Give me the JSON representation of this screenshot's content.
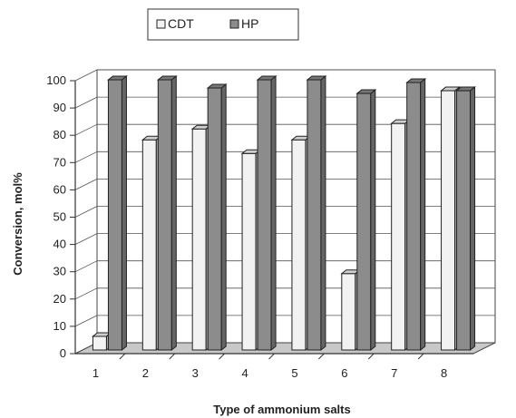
{
  "chart_data": {
    "type": "bar",
    "title": "",
    "xlabel": "Type of ammonium salts",
    "ylabel": "Conversion, mol%",
    "categories": [
      "1",
      "2",
      "3",
      "4",
      "5",
      "6",
      "7",
      "8"
    ],
    "ylim": [
      0,
      100
    ],
    "yticks": [
      "0",
      "10",
      "20",
      "30",
      "40",
      "50",
      "60",
      "70",
      "80",
      "90",
      "100"
    ],
    "grid": true,
    "legend_position": "top",
    "style": "3d-clustered",
    "series": [
      {
        "name": "CDT",
        "color": "#f2f2f2",
        "values": [
          5,
          77,
          81,
          72,
          77,
          28,
          83,
          95
        ]
      },
      {
        "name": "HP",
        "color": "#8c8c8c",
        "values": [
          99,
          99,
          96,
          99,
          99,
          94,
          98,
          95
        ]
      }
    ]
  }
}
